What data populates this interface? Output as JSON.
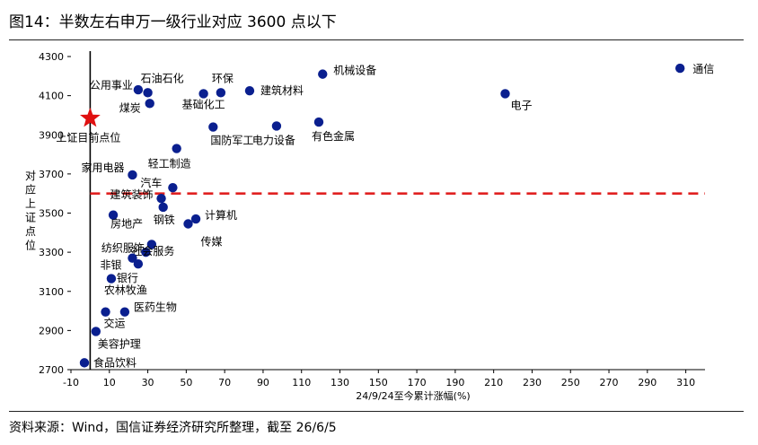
{
  "title": "图14：半数左右申万一级行业对应 3600 点以下",
  "source": "资料来源：Wind，国信证券经济研究所整理，截至 26/6/5",
  "colors": {
    "dot": "#0a1f8f",
    "threshold": "#e02020",
    "star": "#e01010",
    "star_label": "#c00000"
  },
  "chart_data": {
    "type": "scatter",
    "xlabel": "24/9/24至今累计涨幅(%)",
    "ylabel": "对应上证点位",
    "xlim": [
      -10,
      320
    ],
    "ylim": [
      2700,
      4300
    ],
    "xticks": [
      "-10",
      "10",
      "30",
      "50",
      "70",
      "90",
      "110",
      "130",
      "150",
      "170",
      "190",
      "210",
      "230",
      "250",
      "270",
      "290",
      "310"
    ],
    "yticks": [
      "2700",
      "2900",
      "3100",
      "3300",
      "3500",
      "3700",
      "3900",
      "4100",
      "4300"
    ],
    "threshold": 3600,
    "current": {
      "x": 0,
      "y": 3985,
      "label": "上证目前点位"
    },
    "points": [
      {
        "name": "通信",
        "x": 307,
        "y": 4240
      },
      {
        "name": "机械设备",
        "x": 121,
        "y": 4210
      },
      {
        "name": "石油石化",
        "x": 30,
        "y": 4115
      },
      {
        "name": "公用事业",
        "x": 25,
        "y": 4130
      },
      {
        "name": "环保",
        "x": 68,
        "y": 4115
      },
      {
        "name": "建筑材料",
        "x": 83,
        "y": 4125
      },
      {
        "name": "基础化工",
        "x": 59,
        "y": 4110
      },
      {
        "name": "电子",
        "x": 216,
        "y": 4110
      },
      {
        "name": "煤炭",
        "x": 31,
        "y": 4060
      },
      {
        "name": "国防军工",
        "x": 64,
        "y": 3940
      },
      {
        "name": "电力设备",
        "x": 97,
        "y": 3945
      },
      {
        "name": "有色金属",
        "x": 119,
        "y": 3965
      },
      {
        "name": "轻工制造",
        "x": 45,
        "y": 3830
      },
      {
        "name": "家用电器",
        "x": 22,
        "y": 3695
      },
      {
        "name": "汽车",
        "x": 43,
        "y": 3630
      },
      {
        "name": "建筑装饰",
        "x": 37,
        "y": 3575
      },
      {
        "name": "钢铁",
        "x": 38,
        "y": 3530
      },
      {
        "name": "房地产",
        "x": 12,
        "y": 3490
      },
      {
        "name": "计算机",
        "x": 55,
        "y": 3470
      },
      {
        "name": "传媒",
        "x": 51,
        "y": 3445
      },
      {
        "name": "纺织服饰",
        "x": 32,
        "y": 3340
      },
      {
        "name": "社会服务",
        "x": 29,
        "y": 3300
      },
      {
        "name": "非银",
        "x": 22,
        "y": 3270
      },
      {
        "name": "银行",
        "x": 25,
        "y": 3240
      },
      {
        "name": "农林牧渔",
        "x": 11,
        "y": 3165
      },
      {
        "name": "医药生物",
        "x": 18,
        "y": 2995
      },
      {
        "name": "交运",
        "x": 8,
        "y": 2995
      },
      {
        "name": "美容护理",
        "x": 3,
        "y": 2895
      },
      {
        "name": "食品饮料",
        "x": -3,
        "y": 2735
      }
    ]
  }
}
